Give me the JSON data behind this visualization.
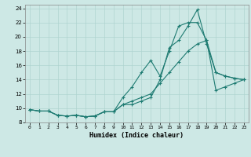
{
  "xlabel": "Humidex (Indice chaleur)",
  "xlim": [
    -0.5,
    23.5
  ],
  "ylim": [
    8,
    24.5
  ],
  "yticks": [
    8,
    10,
    12,
    14,
    16,
    18,
    20,
    22,
    24
  ],
  "xticks": [
    0,
    1,
    2,
    3,
    4,
    5,
    6,
    7,
    8,
    9,
    10,
    11,
    12,
    13,
    14,
    15,
    16,
    17,
    18,
    19,
    20,
    21,
    22,
    23
  ],
  "bg_color": "#cde8e5",
  "grid_color": "#afd4d0",
  "line_color": "#1e7b72",
  "line1_x": [
    0,
    1,
    2,
    3,
    4,
    5,
    6,
    7,
    8,
    9,
    10,
    11,
    12,
    13,
    14,
    15,
    16,
    17,
    18,
    19,
    20,
    21,
    22,
    23
  ],
  "line1_y": [
    9.8,
    9.6,
    9.6,
    9.0,
    8.9,
    9.0,
    8.8,
    8.9,
    9.5,
    9.5,
    10.5,
    10.5,
    11.0,
    11.5,
    14.0,
    18.5,
    19.5,
    21.5,
    23.8,
    19.0,
    15.0,
    14.5,
    14.2,
    14.0
  ],
  "line2_x": [
    0,
    1,
    2,
    3,
    4,
    5,
    6,
    7,
    8,
    9,
    10,
    11,
    12,
    13,
    14,
    15,
    16,
    17,
    18,
    19,
    20,
    21,
    22,
    23
  ],
  "line2_y": [
    9.8,
    9.6,
    9.6,
    9.0,
    8.9,
    9.0,
    8.8,
    8.9,
    9.5,
    9.5,
    11.5,
    13.0,
    15.0,
    16.7,
    14.5,
    18.0,
    21.5,
    22.0,
    22.0,
    19.5,
    15.0,
    14.5,
    14.2,
    14.0
  ],
  "line3_x": [
    0,
    1,
    2,
    3,
    4,
    5,
    6,
    7,
    8,
    9,
    10,
    11,
    12,
    13,
    14,
    15,
    16,
    17,
    18,
    19,
    20,
    21,
    22,
    23
  ],
  "line3_y": [
    9.8,
    9.6,
    9.6,
    9.0,
    8.9,
    9.0,
    8.8,
    8.9,
    9.5,
    9.5,
    10.5,
    11.0,
    11.5,
    12.0,
    13.5,
    15.0,
    16.5,
    18.0,
    19.0,
    19.5,
    12.5,
    13.0,
    13.5,
    14.0
  ]
}
